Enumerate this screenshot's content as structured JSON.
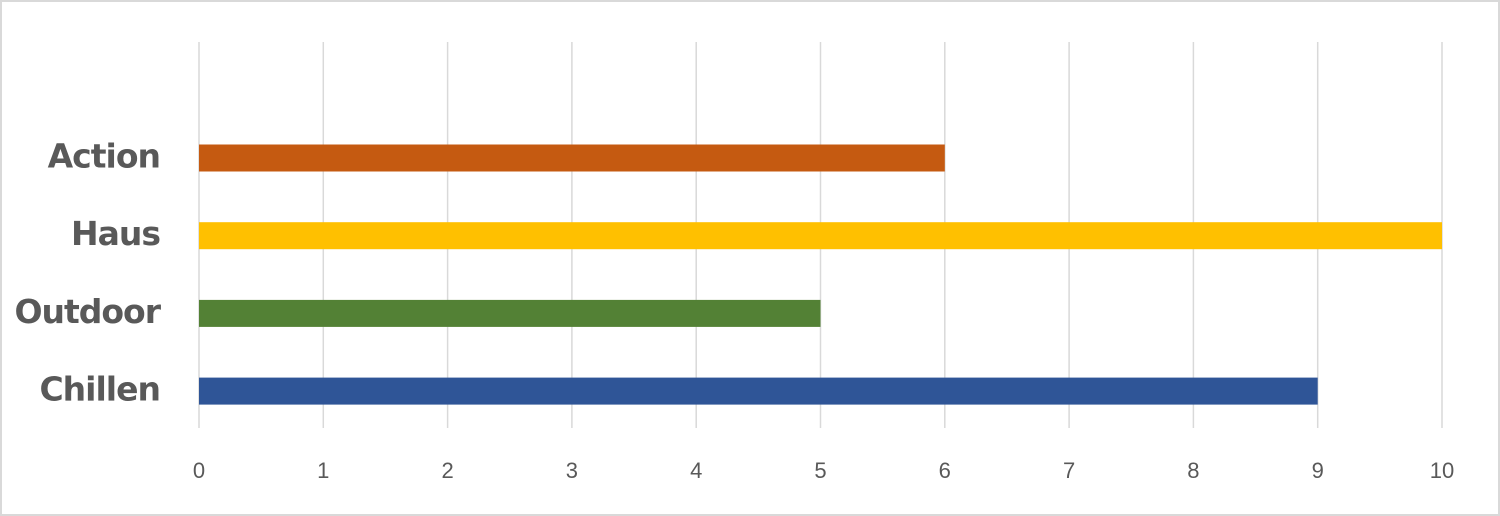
{
  "chart_data": {
    "type": "bar",
    "orientation": "horizontal",
    "categories": [
      "Action",
      "Haus",
      "Outdoor",
      "Chillen"
    ],
    "values": [
      6,
      10,
      5,
      9
    ],
    "colors": [
      "#c55a11",
      "#ffc000",
      "#538135",
      "#2f5597"
    ],
    "xlim": [
      0,
      10
    ],
    "xticks": [
      0,
      1,
      2,
      3,
      4,
      5,
      6,
      7,
      8,
      9,
      10
    ],
    "grid": true
  }
}
